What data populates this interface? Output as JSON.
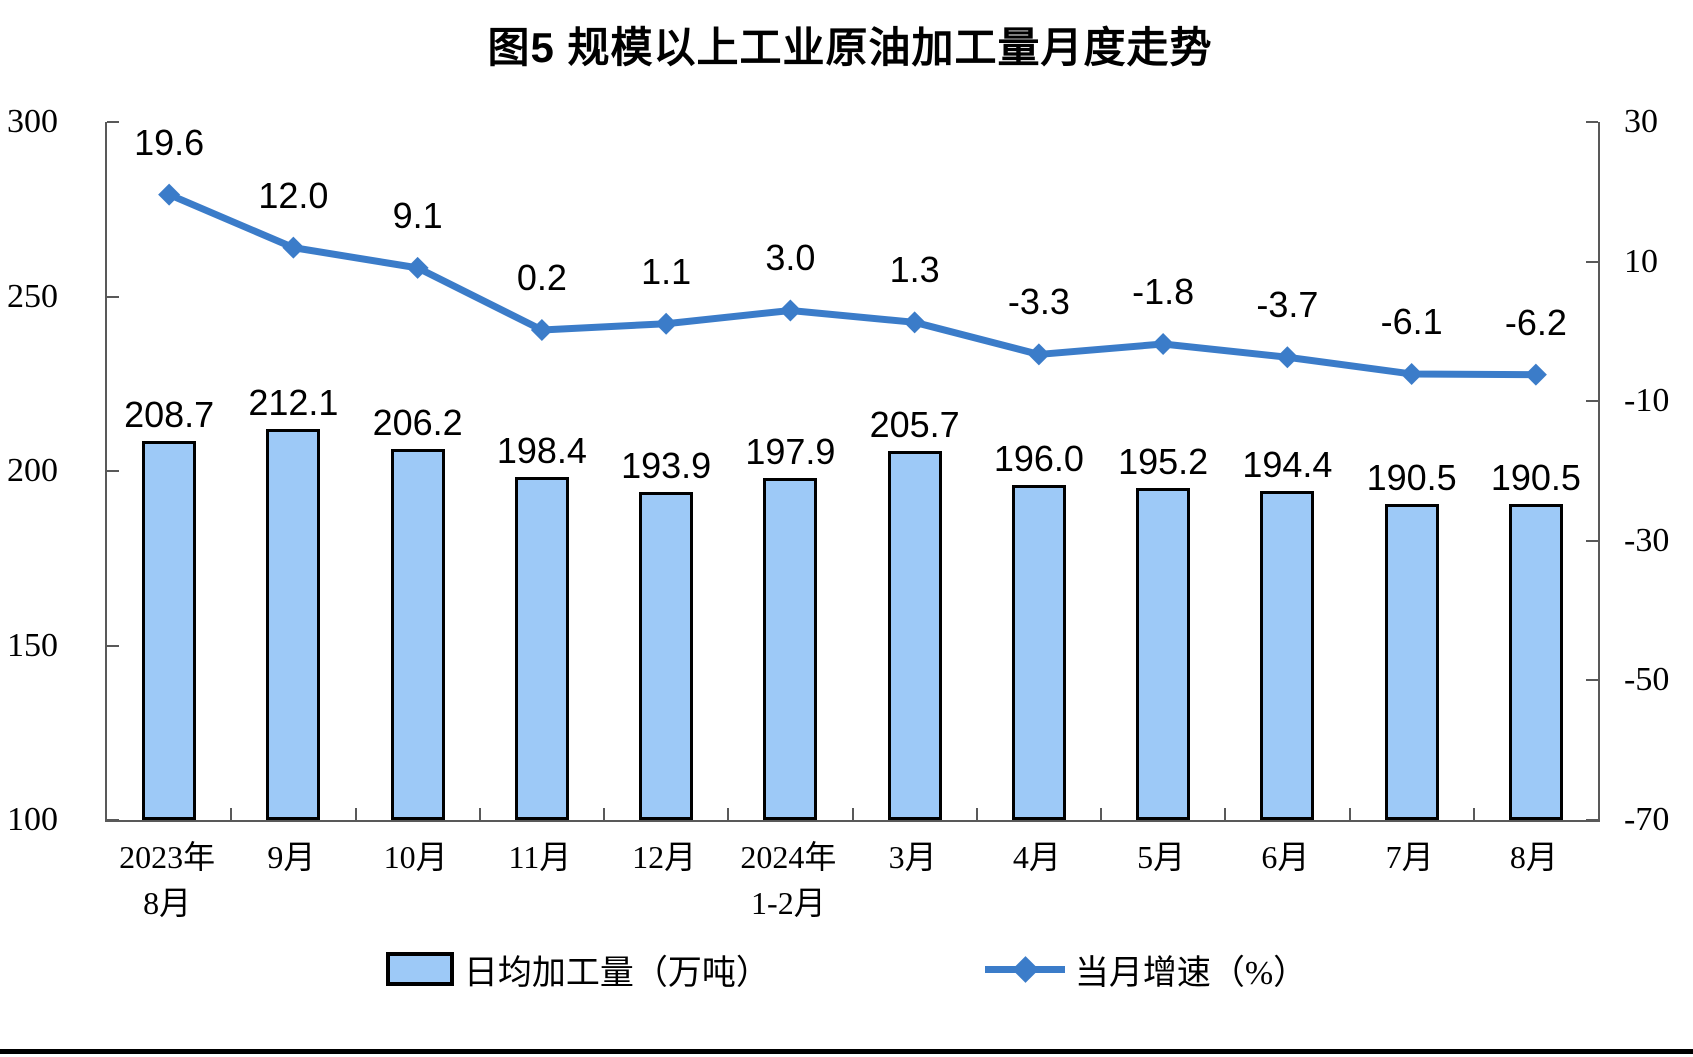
{
  "title": "图5 规模以上工业原油加工量月度走势",
  "chart_data": {
    "type": "bar+line",
    "title": "图5 规模以上工业原油加工量月度走势",
    "categories": [
      "2023年\n8月",
      "9月",
      "10月",
      "11月",
      "12月",
      "2024年\n1-2月",
      "3月",
      "4月",
      "5月",
      "6月",
      "7月",
      "8月"
    ],
    "series": [
      {
        "name": "日均加工量（万吨）",
        "type": "bar",
        "axis": "left",
        "values": [
          208.7,
          212.1,
          206.2,
          198.4,
          193.9,
          197.9,
          205.7,
          196.0,
          195.2,
          194.4,
          190.5,
          190.5
        ]
      },
      {
        "name": "当月增速（%）",
        "type": "line",
        "axis": "right",
        "values": [
          19.6,
          12.0,
          9.1,
          0.2,
          1.1,
          3.0,
          1.3,
          -3.3,
          -1.8,
          -3.7,
          -6.1,
          -6.2
        ]
      }
    ],
    "left_axis": {
      "min": 100,
      "max": 300,
      "ticks": [
        300,
        250,
        200,
        150,
        100
      ]
    },
    "right_axis": {
      "min": -70,
      "max": 30,
      "ticks": [
        30,
        10,
        -10,
        -30,
        -50,
        -70
      ]
    },
    "grid": false,
    "legend_position": "bottom"
  },
  "legend": {
    "bar_label": "日均加工量（万吨）",
    "line_label": "当月增速（%）"
  },
  "colors": {
    "bar_fill": "#9DC9F7",
    "bar_border": "#000000",
    "line": "#3B7CC9",
    "axis": "#595959",
    "text": "#000000"
  }
}
